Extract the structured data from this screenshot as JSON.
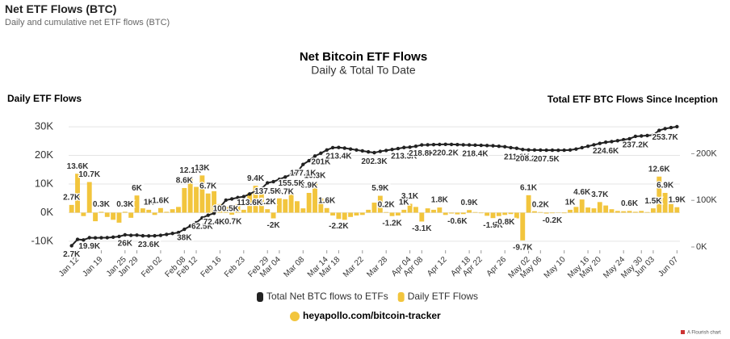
{
  "header": {
    "title": "Net ETF Flows (BTC)",
    "subtitle": "Daily and cumulative net ETF flows (BTC)"
  },
  "footer": {
    "link": "heyapollo.com/bitcoin-tracker",
    "credit": "A Flourish chart"
  },
  "chart_data": {
    "type": "bar-line",
    "title": "Net Bitcoin ETF Flows",
    "subtitle": "Daily & Total To Date",
    "y_label": "Daily ETF Flows",
    "y2_label": "Total ETF BTC Flows Since Inception",
    "categories": [
      null,
      "Jan 12",
      null,
      null,
      null,
      "Jan 19",
      null,
      null,
      null,
      "Jan 25",
      null,
      "Jan 29",
      null,
      null,
      null,
      "Feb 02",
      null,
      null,
      null,
      "Feb 08",
      null,
      "Feb 12",
      null,
      null,
      null,
      "Feb 16",
      null,
      null,
      null,
      "Feb 23",
      null,
      null,
      null,
      "Feb 29",
      null,
      "Mar 04",
      null,
      null,
      null,
      "Mar 08",
      null,
      null,
      null,
      "Mar 14",
      null,
      "Mar 18",
      null,
      null,
      null,
      "Mar 22",
      null,
      null,
      null,
      "Mar 28",
      null,
      null,
      null,
      "Apr 04",
      null,
      "Apr 08",
      null,
      null,
      null,
      "Apr 12",
      null,
      null,
      null,
      "Apr 18",
      null,
      "Apr 22",
      null,
      null,
      null,
      "Apr 26",
      null,
      null,
      null,
      "May 02",
      null,
      "May 06",
      null,
      null,
      null,
      "May 10",
      null,
      null,
      null,
      "May 16",
      null,
      "May 20",
      null,
      null,
      null,
      "May 24",
      null,
      null,
      "May 30",
      null,
      "Jun 03",
      null,
      null,
      null,
      "Jun 07"
    ],
    "series": [
      {
        "name": "Daily ETF Flows",
        "color": "#f2c53d",
        "mark": "bar",
        "values": [
          2700,
          13600,
          -1200,
          10700,
          -3000,
          300,
          -1500,
          -2500,
          -3500,
          300,
          -1800,
          6000,
          1500,
          1000,
          -800,
          1600,
          300,
          1200,
          2000,
          8600,
          12100,
          9000,
          13000,
          6700,
          7500,
          3000,
          2000,
          -700,
          3000,
          1000,
          6800,
          9400,
          7000,
          1200,
          -2000,
          5000,
          4700,
          6500,
          4000,
          1500,
          6900,
          10300,
          5000,
          1600,
          -1000,
          -2200,
          -2500,
          -1500,
          -1000,
          -800,
          1000,
          3500,
          5900,
          200,
          -1200,
          -1000,
          1000,
          3100,
          2000,
          -3100,
          1500,
          1000,
          1800,
          -800,
          -300,
          -600,
          -500,
          900,
          200,
          -200,
          -1100,
          -1900,
          -1200,
          -800,
          -500,
          -2000,
          -9700,
          6100,
          500,
          200,
          -300,
          -200,
          -100,
          -200,
          1000,
          2000,
          4600,
          1800,
          1500,
          3700,
          2500,
          1200,
          600,
          500,
          600,
          300,
          600,
          200,
          1500,
          12600,
          6900,
          3000,
          1900
        ],
        "value_labels": [
          "2.7K",
          "13.6K",
          null,
          "10.7K",
          null,
          "0.3K",
          null,
          null,
          null,
          "0.3K",
          null,
          "6K",
          null,
          "1K",
          null,
          "1.6K",
          null,
          null,
          null,
          "8.6K",
          "12.1K",
          null,
          "13K",
          "6.7K",
          null,
          null,
          null,
          "-0.7K",
          null,
          null,
          null,
          "9.4K",
          null,
          "1.2K",
          "-2K",
          null,
          "4.7K",
          null,
          null,
          null,
          "6.9K",
          "10.3K",
          null,
          "1.6K",
          null,
          "-2.2K",
          null,
          null,
          null,
          null,
          null,
          null,
          "5.9K",
          "0.2K",
          "-1.2K",
          null,
          "1K",
          "3.1K",
          null,
          "-3.1K",
          null,
          null,
          "1.8K",
          null,
          null,
          "-0.6K",
          null,
          "0.9K",
          null,
          null,
          null,
          "-1.9K",
          null,
          "-0.8K",
          null,
          null,
          "-9.7K",
          "6.1K",
          null,
          "0.2K",
          null,
          "-0.2K",
          null,
          null,
          "1K",
          null,
          "4.6K",
          null,
          null,
          "3.7K",
          null,
          null,
          null,
          null,
          "0.6K",
          null,
          null,
          null,
          "1.5K",
          "12.6K",
          "6.9K",
          null,
          "1.9K"
        ]
      },
      {
        "name": "Total Net BTC flows to ETFs",
        "color": "#222222",
        "mark": "line",
        "axis": "y2",
        "values": [
          2700,
          16300,
          15100,
          19900,
          19500,
          19800,
          20000,
          21000,
          22500,
          26000,
          25000,
          25500,
          24000,
          23600,
          24000,
          25000,
          27000,
          29000,
          31000,
          38000,
          45000,
          52000,
          62500,
          68000,
          72400,
          85000,
          100500,
          103000,
          106000,
          108000,
          113600,
          120000,
          125000,
          137500,
          140000,
          145000,
          150000,
          155500,
          160000,
          177100,
          185000,
          195000,
          201000,
          208000,
          213000,
          213400,
          212000,
          210000,
          208000,
          206000,
          204000,
          202300,
          205000,
          207000,
          209000,
          211000,
          213300,
          214000,
          216000,
          218800,
          219000,
          219500,
          219800,
          220200,
          220000,
          219500,
          219000,
          218800,
          218400,
          218000,
          217500,
          217000,
          216000,
          215000,
          213000,
          211600,
          209000,
          208200,
          208000,
          207800,
          207500,
          207600,
          207400,
          207500,
          208000,
          210000,
          213000,
          216000,
          219000,
          222000,
          224600,
          226000,
          228000,
          230000,
          232000,
          237200,
          238000,
          239000,
          240000,
          250000,
          253700,
          256000,
          258000
        ],
        "value_labels": [
          "2.7K",
          null,
          null,
          "19.9K",
          null,
          null,
          null,
          null,
          null,
          "26K",
          null,
          null,
          null,
          "23.6K",
          null,
          null,
          null,
          null,
          null,
          "38K",
          null,
          null,
          "62.5K",
          null,
          "72.4K",
          null,
          "100.5K",
          null,
          null,
          null,
          "113.6K",
          null,
          null,
          "137.5K",
          null,
          null,
          null,
          "155.5K",
          null,
          "177.1K",
          null,
          null,
          "201K",
          null,
          null,
          "213.4K",
          null,
          null,
          null,
          null,
          null,
          "202.3K",
          null,
          null,
          null,
          null,
          "213.3K",
          null,
          null,
          "218.8K",
          null,
          null,
          null,
          "220.2K",
          null,
          null,
          null,
          null,
          "218.4K",
          null,
          null,
          null,
          null,
          null,
          null,
          "211.6K",
          null,
          "208.2K",
          null,
          null,
          "207.5K",
          null,
          null,
          null,
          null,
          null,
          null,
          null,
          null,
          null,
          "224.6K",
          null,
          null,
          null,
          null,
          "237.2K",
          null,
          null,
          null,
          null,
          "253.7K",
          null,
          null
        ]
      }
    ],
    "ylim": [
      -12000,
      32000
    ],
    "yticks": [
      {
        "value": -10000,
        "label": "-10K"
      },
      {
        "value": 0,
        "label": "0K"
      },
      {
        "value": 10000,
        "label": "10K"
      },
      {
        "value": 20000,
        "label": "20K"
      },
      {
        "value": 30000,
        "label": "30K"
      }
    ],
    "y2lim": [
      0,
      270000
    ],
    "y2ticks": [
      {
        "value": 0,
        "label": "0K"
      },
      {
        "value": 100000,
        "label": "100K"
      },
      {
        "value": 200000,
        "label": "200K"
      }
    ],
    "grid": true,
    "legend": "bottom"
  }
}
